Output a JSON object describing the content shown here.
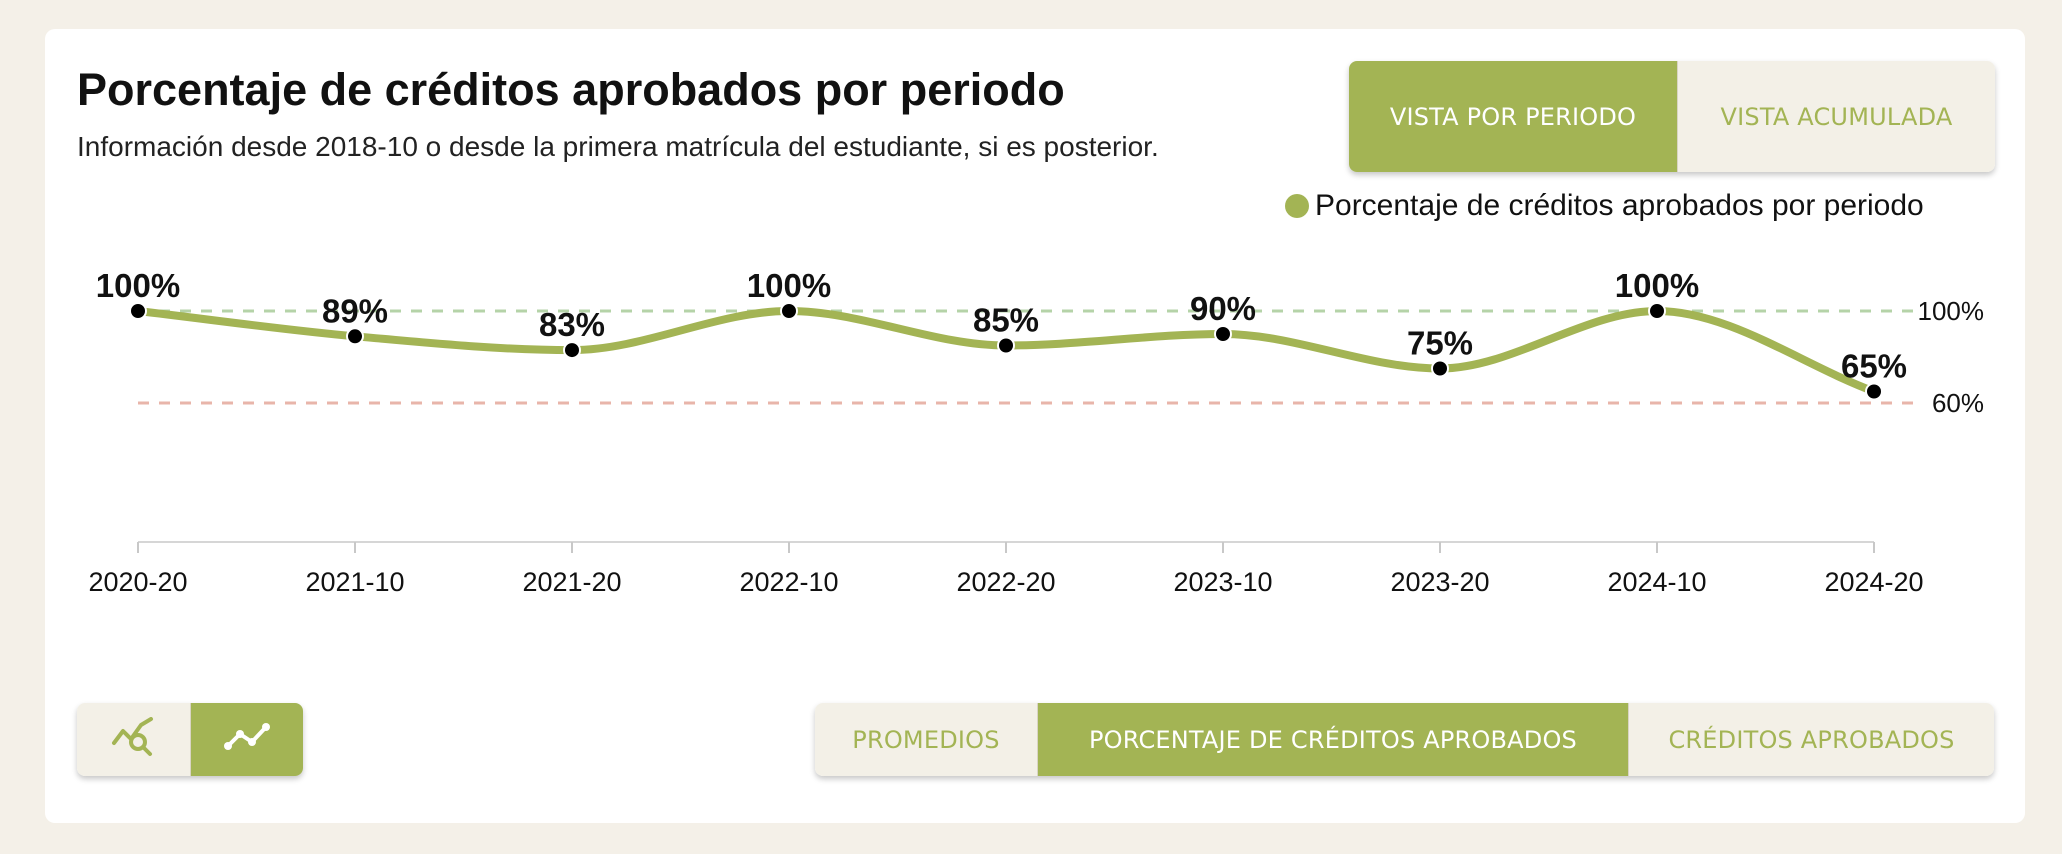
{
  "header": {
    "title": "Porcentaje de créditos aprobados por periodo",
    "subtitle": "Información desde 2018-10 o desde la primera matrícula del estudiante, si es posterior."
  },
  "view_toggle": {
    "options": [
      "VISTA POR PERIODO",
      "VISTA ACUMULADA"
    ],
    "selected": "VISTA POR PERIODO"
  },
  "metric_toggle": {
    "options": [
      "PROMEDIOS",
      "PORCENTAJE DE CRÉDITOS APROBADOS",
      "CRÉDITOS APROBADOS"
    ],
    "selected": "PORCENTAJE DE CRÉDITOS APROBADOS"
  },
  "chart_toggle": {
    "options": [
      {
        "icon": "chart-search-icon",
        "selected": false
      },
      {
        "icon": "line-chart-icon",
        "selected": true
      }
    ]
  },
  "colors": {
    "accent": "#a3b454",
    "target_line": "#b5d3a8",
    "min_line": "#e8b5aa",
    "point": "#000000"
  },
  "chart_data": {
    "type": "line",
    "categories": [
      "2020-20",
      "2021-10",
      "2021-20",
      "2022-10",
      "2022-20",
      "2023-10",
      "2023-20",
      "2024-10",
      "2024-20"
    ],
    "series": [
      {
        "name": "Porcentaje de créditos aprobados por periodo",
        "values": [
          100,
          89,
          83,
          100,
          85,
          90,
          75,
          100,
          65
        ],
        "labels": [
          "100%",
          "89%",
          "83%",
          "100%",
          "85%",
          "90%",
          "75%",
          "100%",
          "65%"
        ]
      }
    ],
    "reference_lines": [
      {
        "value": 100,
        "label": "100%",
        "color": "#b5d3a8"
      },
      {
        "value": 60,
        "label": "60%",
        "color": "#e8b5aa"
      }
    ],
    "legend": "top-right",
    "grid": false
  }
}
